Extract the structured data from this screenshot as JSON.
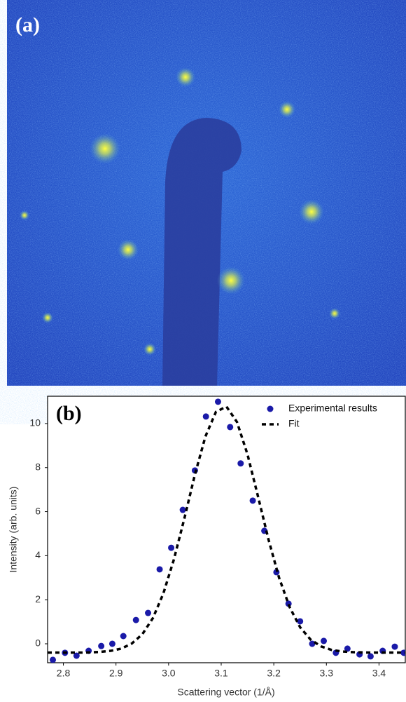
{
  "image": {
    "label": "(a)"
  },
  "chart_data": {
    "type": "scatter",
    "label": "(b)",
    "x_label": "Scattering vector (1/Å)",
    "y_label": "Intensity (arb. units)",
    "xlim": [
      2.77,
      3.45
    ],
    "ylim": [
      -0.86,
      11.24
    ],
    "xticks": [
      2.8,
      2.9,
      {
        "value": 3,
        "label": "3.0"
      },
      3.1,
      3.2,
      3.3,
      3.4
    ],
    "yticks": [
      0,
      2,
      4,
      6,
      8,
      10
    ],
    "legend": "upper right",
    "series": [
      {
        "name": "Experimental results",
        "style": "marker",
        "color": "#1a1aa8",
        "x": [
          2.78,
          2.803,
          2.825,
          2.848,
          2.872,
          2.893,
          2.914,
          2.938,
          2.961,
          2.983,
          3.005,
          3.027,
          3.05,
          3.071,
          3.094,
          3.117,
          3.137,
          3.16,
          3.182,
          3.205,
          3.228,
          3.25,
          3.273,
          3.295,
          3.318,
          3.34,
          3.363,
          3.384,
          3.407,
          3.43,
          3.447
        ],
        "values": [
          -0.73,
          -0.41,
          -0.54,
          -0.32,
          -0.1,
          0.0,
          0.35,
          1.08,
          1.4,
          3.38,
          4.36,
          6.08,
          7.87,
          10.32,
          10.99,
          9.84,
          8.19,
          6.5,
          5.13,
          3.25,
          1.82,
          1.02,
          0.0,
          0.13,
          -0.41,
          -0.22,
          -0.48,
          -0.57,
          -0.32,
          -0.13,
          -0.41
        ]
      },
      {
        "name": "Fit",
        "style": "dashed",
        "color": "#000000",
        "x": [
          2.77,
          2.79,
          2.81,
          2.83,
          2.85,
          2.87,
          2.89,
          2.91,
          2.93,
          2.95,
          2.97,
          2.99,
          3.01,
          3.03,
          3.05,
          3.07,
          3.09,
          3.11,
          3.13,
          3.15,
          3.17,
          3.19,
          3.21,
          3.23,
          3.25,
          3.27,
          3.29,
          3.31,
          3.33,
          3.35,
          3.37,
          3.39,
          3.41,
          3.43,
          3.45
        ],
        "values": [
          -0.4,
          -0.4,
          -0.4,
          -0.4,
          -0.39,
          -0.37,
          -0.32,
          -0.22,
          0.01,
          0.43,
          1.16,
          2.28,
          3.82,
          5.69,
          7.68,
          9.41,
          10.53,
          10.77,
          10.07,
          8.6,
          6.69,
          4.73,
          3.0,
          1.67,
          0.75,
          0.19,
          -0.12,
          -0.28,
          -0.35,
          -0.38,
          -0.39,
          -0.4,
          -0.4,
          -0.4,
          -0.4
        ]
      }
    ]
  }
}
